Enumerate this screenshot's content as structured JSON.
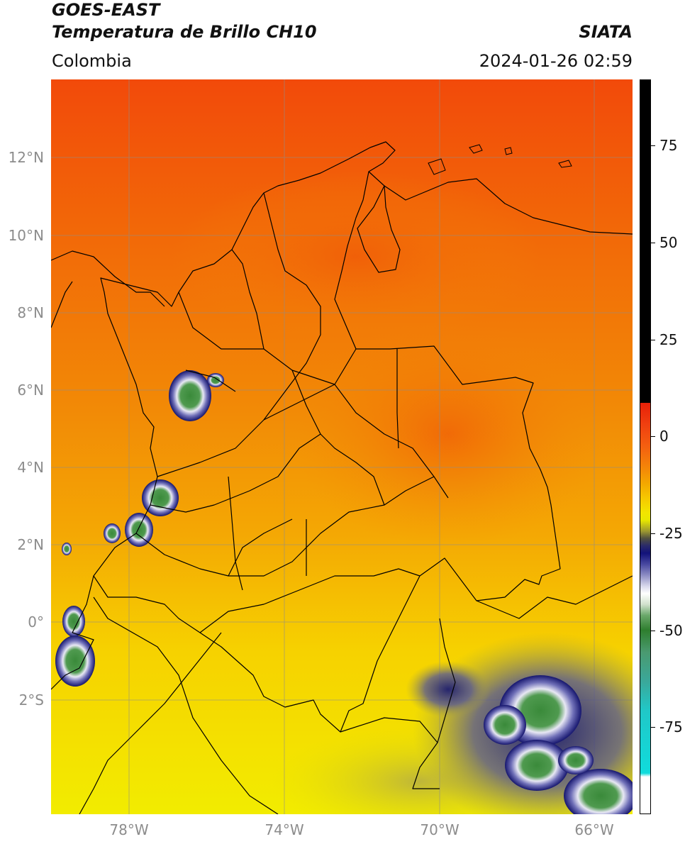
{
  "header": {
    "title_line1": "GOES-EAST",
    "title_line2": "Temperatura de Brillo CH10",
    "region": "Colombia",
    "source": "SIATA",
    "timestamp": "2024-01-26 02:59"
  },
  "map": {
    "lat_labels": [
      "12°N",
      "10°N",
      "8°N",
      "6°N",
      "4°N",
      "2°N",
      "0°",
      "2°S"
    ],
    "lon_labels": [
      "78°W",
      "74°W",
      "70°W",
      "66°W"
    ]
  },
  "colorbar": {
    "tick_labels": [
      "75",
      "50",
      "25",
      "0",
      "-25",
      "-50",
      "-75"
    ]
  },
  "colors": {
    "warm_top": "#f24a0a",
    "warm_mid": "#f28a06",
    "warm_low": "#f6c800",
    "yellow": "#f7f000",
    "cold_navy": "#16166e",
    "cold_white": "#ffffff",
    "cold_green": "#3a8a3a",
    "border": "#000000",
    "grid": "#8c8c8c"
  }
}
